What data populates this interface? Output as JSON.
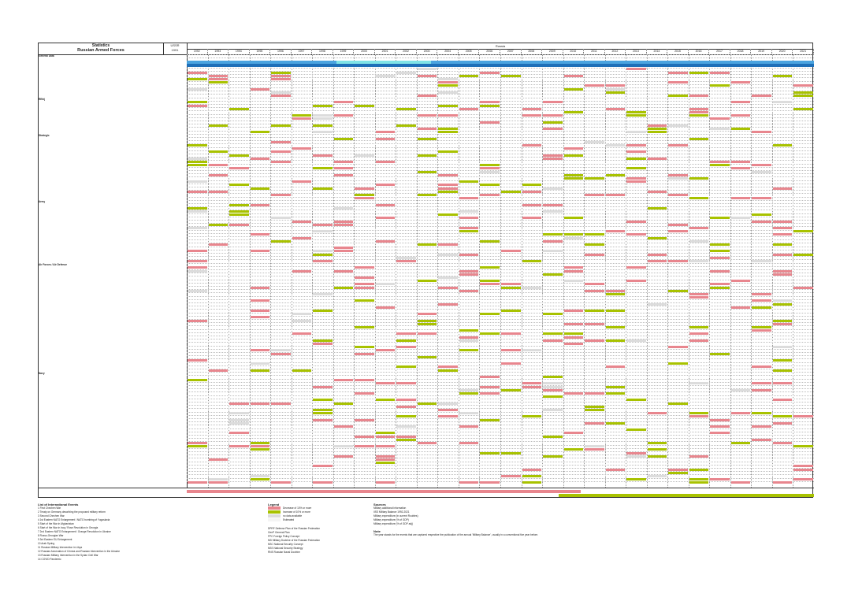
{
  "header": {
    "statistics": "Statistics",
    "forces": "Russian Armed Forces",
    "ussr": "USSR",
    "ussr_year": "1991",
    "russia": "Russia",
    "years": [
      "1992",
      "1993",
      "1994",
      "1995",
      "1996",
      "1997",
      "1998",
      "1999",
      "2000",
      "2001",
      "2002",
      "2003",
      "2004",
      "2005",
      "2006",
      "2007",
      "2008",
      "2009",
      "2010",
      "2011",
      "2012",
      "2013",
      "2014",
      "2015",
      "2016",
      "2017",
      "2018",
      "2019",
      "2020",
      "2021"
    ]
  },
  "sections": [
    "General Data",
    "Rfhhj",
    "Strategic",
    "Army",
    "Air Forces / Air Defence",
    "Navy"
  ],
  "bottom_text": {
    "left": "Russian Armed Forces",
    "right": "Russian Armed Forces"
  },
  "footer": {
    "events_title": "List of International Events",
    "events": [
      "1  First Chechen War",
      "2  Treaty on Germany describing the proposed military reform",
      "3  Second Chechen War",
      "4  1st Eastern NATO Enlargement / NATO bombing of Yugoslavia",
      "5  Start of the War in Afghanistan",
      "6  Start of the War in Iraq / Rose Revolution in Georgia",
      "7  2nd Eastern NATO Enlargement / Orange Revolution in Ukraine",
      "8  Russo-Georgian War",
      "9  3rd Eastern EU Enlargement",
      "10  Arab Spring",
      "11  Russian Military Intervention in Libya",
      "12  Russian Annexation of Crimea and Russian Intervention in the Ukraine",
      "13  Russian Military Intervention in the Syrian Civil War",
      "14  COVID Pandemic"
    ],
    "legend_title": "Legend",
    "legend": [
      {
        "color": "#e8868e",
        "label": "Decrease of 10% or more"
      },
      {
        "color": "#a8c200",
        "label": "Increase of 10% or more"
      },
      {
        "color": "#dcdcdc",
        "label": "no data available"
      },
      {
        "color": "#f4f4f4",
        "label": "Estimated"
      }
    ],
    "abbr": [
      "DPRF  Defense Plan of the Russian Federation",
      "GenP  General Plan",
      "FPC  Foreign Policy Concept",
      "MD  Military Doctrine of the Russian Federation",
      "NSC  National Security Concept",
      "NSS  National Security Strategy",
      "RNS  Russian Naval Doctrine"
    ],
    "sources_title": "Sources",
    "sources": [
      "Military additional information",
      "IISS Military Balance 1992-2021",
      "Military expenditure (in current Roubles)",
      "Military expenditure (% of GDP)",
      "Military expenditure (% of GDP adj)"
    ],
    "note_title": "Note",
    "note": "The year stands for the events that are captured respective the publication of the annual 'Military Balance', usually in a conventional five year before."
  }
}
